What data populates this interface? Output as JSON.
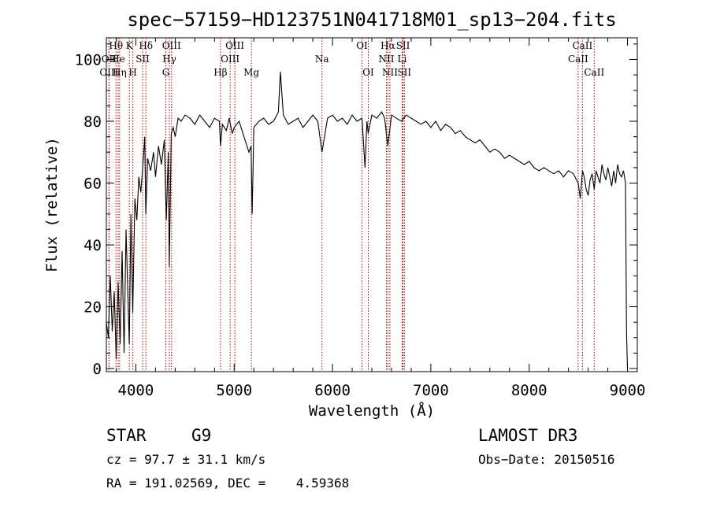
{
  "chart_data": {
    "type": "line",
    "title": "spec−57159−HD123751N041718M01_sp13−204.fits",
    "xlabel": "Wavelength (Å)",
    "ylabel": "Flux (relative)",
    "xlim": [
      3700,
      9100
    ],
    "ylim": [
      -1,
      107
    ],
    "xticks": [
      4000,
      5000,
      6000,
      7000,
      8000,
      9000
    ],
    "xticklabels": [
      "4000",
      "5000",
      "6000",
      "7000",
      "8000",
      "9000"
    ],
    "yticks": [
      0,
      20,
      40,
      60,
      80,
      100
    ],
    "yticklabels": [
      "0",
      "20",
      "40",
      "60",
      "80",
      "100"
    ],
    "grid": false,
    "line_color": "#000000",
    "marker_color": "#aa0000",
    "series": [
      {
        "x": [
          3700,
          3720,
          3740,
          3760,
          3780,
          3800,
          3820,
          3840,
          3860,
          3880,
          3900,
          3920,
          3933,
          3950,
          3968,
          3990,
          4010,
          4030,
          4050,
          4070,
          4090,
          4101,
          4120,
          4150,
          4180,
          4200,
          4230,
          4260,
          4290,
          4310,
          4330,
          4340,
          4360,
          4380,
          4400,
          4430,
          4460,
          4500,
          4550,
          4600,
          4650,
          4700,
          4750,
          4800,
          4850,
          4861,
          4880,
          4920,
          4950,
          4980,
          5000,
          5050,
          5100,
          5150,
          5172,
          5183,
          5200,
          5250,
          5300,
          5350,
          5400,
          5450,
          5470,
          5500,
          5550,
          5600,
          5650,
          5700,
          5750,
          5800,
          5850,
          5893,
          5950,
          6000,
          6050,
          6100,
          6150,
          6200,
          6250,
          6300,
          6330,
          6350,
          6363,
          6400,
          6450,
          6500,
          6530,
          6563,
          6600,
          6650,
          6700,
          6750,
          6800,
          6850,
          6900,
          6950,
          7000,
          7050,
          7100,
          7150,
          7200,
          7250,
          7300,
          7350,
          7400,
          7450,
          7500,
          7550,
          7600,
          7650,
          7700,
          7750,
          7800,
          7850,
          7900,
          7950,
          8000,
          8050,
          8100,
          8150,
          8200,
          8250,
          8300,
          8350,
          8400,
          8450,
          8498,
          8520,
          8542,
          8560,
          8580,
          8600,
          8620,
          8640,
          8662,
          8680,
          8700,
          8720,
          8740,
          8760,
          8780,
          8800,
          8820,
          8840,
          8860,
          8880,
          8900,
          8920,
          8940,
          8960,
          8980,
          8990,
          9000
        ],
        "y": [
          15,
          10,
          30,
          12,
          25,
          3,
          28,
          8,
          38,
          5,
          45,
          22,
          8,
          50,
          18,
          55,
          48,
          62,
          57,
          65,
          75,
          50,
          68,
          64,
          70,
          62,
          72,
          66,
          74,
          48,
          70,
          33,
          76,
          78,
          75,
          81,
          80,
          82,
          81,
          79,
          82,
          80,
          78,
          81,
          80,
          72,
          79,
          77,
          81,
          76,
          78,
          80,
          75,
          70,
          72,
          50,
          78,
          80,
          81,
          79,
          80,
          83,
          96,
          82,
          79,
          80,
          81,
          78,
          80,
          82,
          80,
          70,
          81,
          82,
          80,
          81,
          79,
          82,
          80,
          81,
          65,
          80,
          76,
          82,
          81,
          83,
          81,
          72,
          82,
          81,
          80,
          82,
          81,
          80,
          79,
          80,
          78,
          80,
          77,
          79,
          78,
          76,
          77,
          75,
          74,
          73,
          74,
          72,
          70,
          71,
          70,
          68,
          69,
          68,
          67,
          66,
          67,
          65,
          64,
          65,
          64,
          63,
          64,
          62,
          64,
          63,
          60,
          55,
          64,
          62,
          58,
          56,
          61,
          63,
          58,
          64,
          62,
          60,
          66,
          63,
          61,
          65,
          62,
          59,
          64,
          60,
          66,
          63,
          62,
          64,
          60,
          12,
          0
        ]
      }
    ],
    "line_markers": [
      {
        "label": "Hθ",
        "x": 3798,
        "row": 1
      },
      {
        "label": "OII",
        "x": 3727,
        "row": 2
      },
      {
        "label": "OIII",
        "x": 3727,
        "row": 3
      },
      {
        "label": "He",
        "x": 3820,
        "row": 2
      },
      {
        "label": "Hη",
        "x": 3835,
        "row": 3
      },
      {
        "label": "K",
        "x": 3934,
        "row": 1
      },
      {
        "label": "H",
        "x": 3969,
        "row": 3
      },
      {
        "label": "SII",
        "x": 4069,
        "row": 2
      },
      {
        "label": "Hδ",
        "x": 4102,
        "row": 1
      },
      {
        "label": "OIII",
        "x": 4363,
        "row": 1
      },
      {
        "label": "Hγ",
        "x": 4341,
        "row": 2
      },
      {
        "label": "G",
        "x": 4305,
        "row": 3
      },
      {
        "label": "Hβ",
        "x": 4861,
        "row": 3
      },
      {
        "label": "OIII",
        "x": 5007,
        "row": 1
      },
      {
        "label": "OIII",
        "x": 4959,
        "row": 2
      },
      {
        "label": "Mg",
        "x": 5175,
        "row": 3
      },
      {
        "label": "Na",
        "x": 5893,
        "row": 2
      },
      {
        "label": "OI",
        "x": 6300,
        "row": 1
      },
      {
        "label": "OI",
        "x": 6364,
        "row": 3
      },
      {
        "label": "Hα",
        "x": 6563,
        "row": 1
      },
      {
        "label": "NII",
        "x": 6548,
        "row": 2
      },
      {
        "label": "NII",
        "x": 6584,
        "row": 3
      },
      {
        "label": "SII",
        "x": 6717,
        "row": 1
      },
      {
        "label": "Li",
        "x": 6708,
        "row": 2
      },
      {
        "label": "SII",
        "x": 6731,
        "row": 3
      },
      {
        "label": "CaII",
        "x": 8542,
        "row": 1
      },
      {
        "label": "CaII",
        "x": 8498,
        "row": 2
      },
      {
        "label": "CaII",
        "x": 8662,
        "row": 3
      }
    ]
  },
  "info": {
    "object_class": "STAR",
    "subclass": "G9",
    "survey": "LAMOST DR3",
    "cz": "cz = 97.7 ± 31.1 km/s",
    "obs_date": "Obs−Date: 20150516",
    "coords": "RA = 191.02569, DEC =    4.59368"
  }
}
